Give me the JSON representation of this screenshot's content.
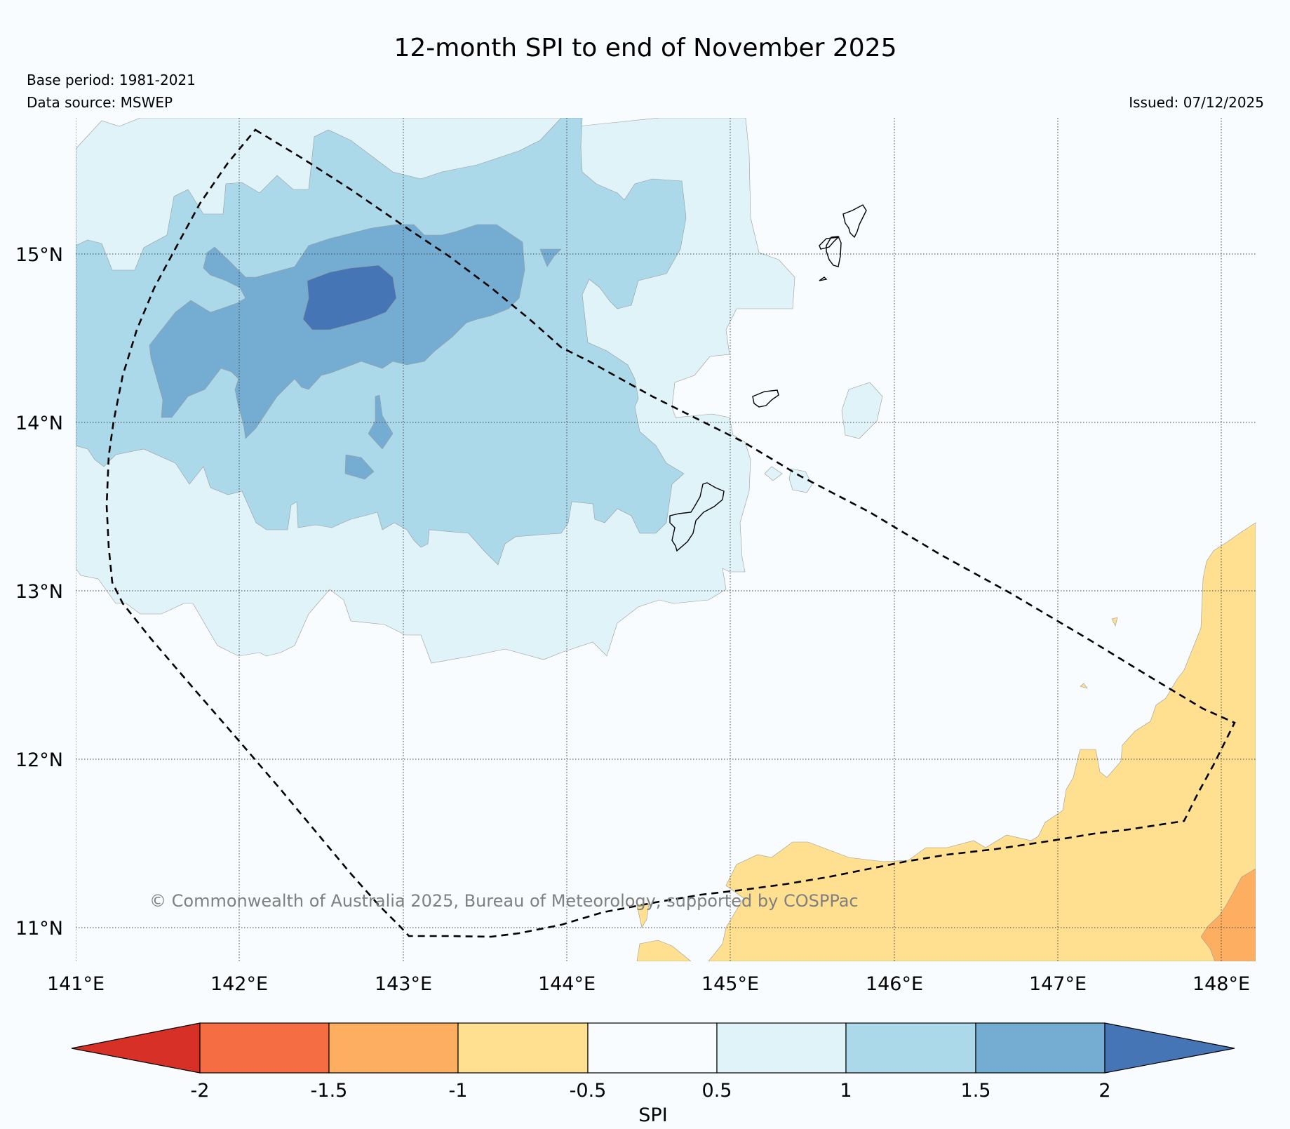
{
  "title": "12-month SPI to end of November 2025",
  "meta": {
    "base_period": "Base period: 1981-2021",
    "data_source": "Data source: MSWEP",
    "issued": "Issued: 07/12/2025"
  },
  "copyright": "© Commonwealth of Australia 2025, Bureau of Meteorology, supported by COSPPac",
  "axes": {
    "lon_ticks": [
      "141°E",
      "142°E",
      "143°E",
      "144°E",
      "145°E",
      "146°E",
      "147°E",
      "148°E"
    ],
    "lat_ticks": [
      "15°N",
      "14°N",
      "13°N",
      "12°N",
      "11°N"
    ]
  },
  "colorbar": {
    "title": "SPI",
    "tick_labels": [
      "-2",
      "-1.5",
      "-1",
      "-0.5",
      "0.5",
      "1",
      "1.5",
      "2"
    ],
    "colors": {
      "below_-2": "#d73027",
      "-2_-1.5": "#f46d43",
      "-1.5_-1": "#fdae61",
      "-1_-0.5": "#fee090",
      "-0.5_0.5": "#f8fcfe",
      "0.5_1": "#e0f3f8",
      "1_1.5": "#abd9e9",
      "1.5_2": "#74add1",
      "above_2": "#4575b4"
    }
  }
}
